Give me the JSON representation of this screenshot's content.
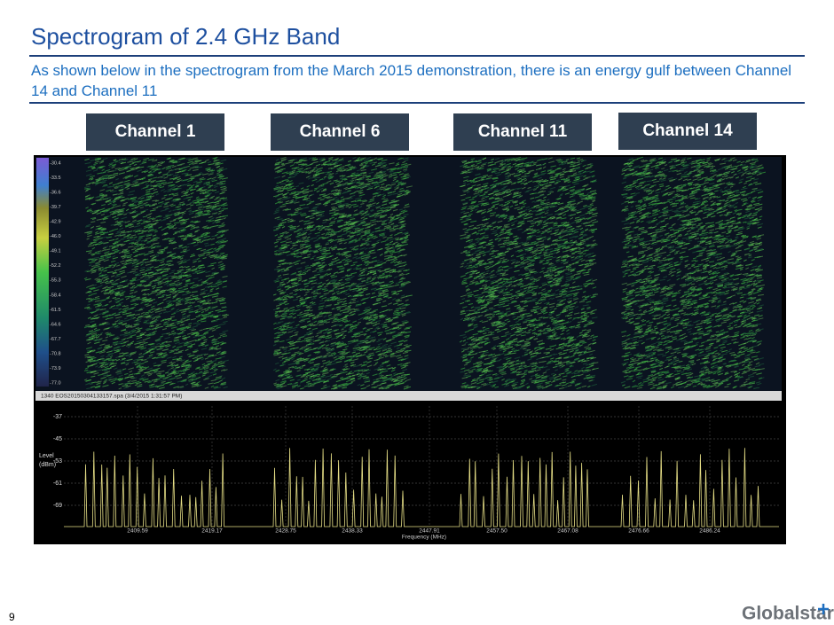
{
  "header": {
    "title": "Spectrogram of 2.4 GHz Band",
    "subtitle": "As shown below in the spectrogram from the March 2015 demonstration, there is an energy gulf between Channel 14 and Channel 11"
  },
  "channels": [
    "Channel 1",
    "Channel 6",
    "Channel 11",
    "Channel 14"
  ],
  "screenshot": {
    "colorbar_labels": [
      "-30.4",
      "-33.5",
      "-36.6",
      "-39.7",
      "-42.9",
      "-46.0",
      "-49.1",
      "-52.2",
      "-55.3",
      "-58.4",
      "-61.5",
      "-64.6",
      "-67.7",
      "-70.8",
      "-73.9",
      "-77.0"
    ],
    "caption": "1340   EOS20150304133157.spa (3/4/2015 1:31:57 PM)",
    "y_axis_title": [
      "Level",
      "(dBm)"
    ],
    "yticks": [
      "-37",
      "-45",
      "-53",
      "-61",
      "-69"
    ],
    "xticks": [
      "2409.59",
      "2419.17",
      "2428.75",
      "2438.33",
      "2447.91",
      "2457.50",
      "2467.08",
      "2476.66",
      "2486.24"
    ],
    "x_axis_title": "Frequency (MHz)"
  },
  "footer": {
    "page_number": "9",
    "logo": "Globalstar"
  }
}
